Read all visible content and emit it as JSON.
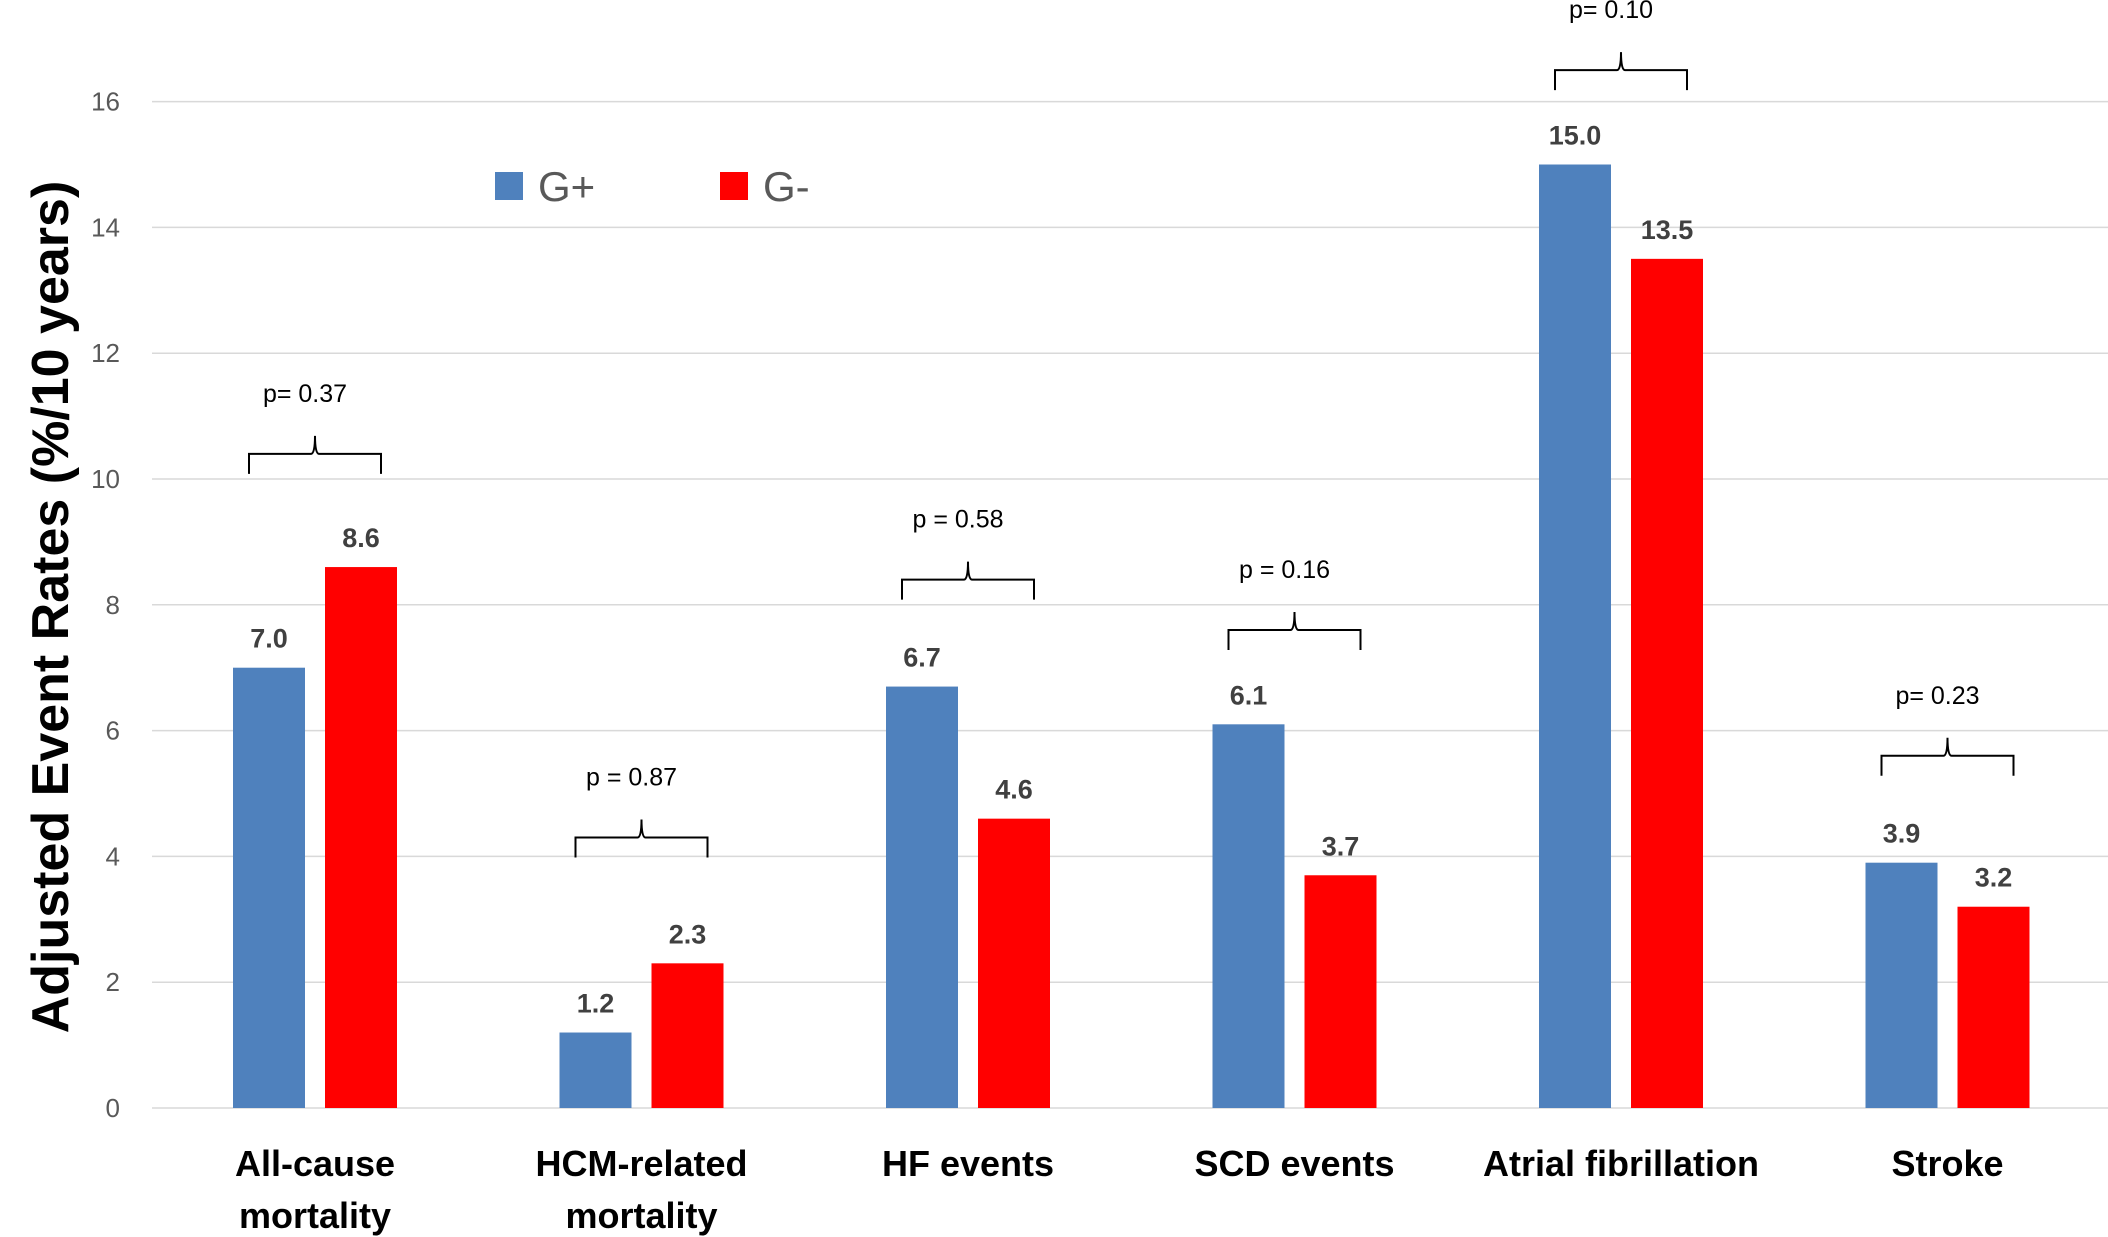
{
  "chart_data": {
    "type": "bar",
    "ylabel": "Adjusted Event Rates  (%/10 years)",
    "ylim": [
      0,
      16
    ],
    "yticks": [
      0,
      2,
      4,
      6,
      8,
      10,
      12,
      14,
      16
    ],
    "grid": true,
    "legend_position": "top-left",
    "categories": [
      [
        "All-cause",
        "mortality"
      ],
      [
        "HCM-related",
        "mortality"
      ],
      [
        "HF events"
      ],
      [
        "SCD events"
      ],
      [
        "Atrial fibrillation"
      ],
      [
        "Stroke"
      ]
    ],
    "series": [
      {
        "name": "G+",
        "color": "#4f81bd",
        "values": [
          7.0,
          1.2,
          6.7,
          6.1,
          15.0,
          3.9
        ],
        "labels": [
          "7.0",
          "1.2",
          "6.7",
          "6.1",
          "15.0",
          "3.9"
        ]
      },
      {
        "name": "G-",
        "color": "#ff0000",
        "values": [
          8.6,
          2.3,
          4.6,
          3.7,
          13.5,
          3.2
        ],
        "labels": [
          "8.6",
          "2.3",
          "4.6",
          "3.7",
          "13.5",
          "3.2"
        ]
      }
    ],
    "annotations": [
      {
        "category": 0,
        "text": "p= 0.37",
        "bracket_y": 10.4
      },
      {
        "category": 1,
        "text": "p = 0.87",
        "bracket_y": 4.3
      },
      {
        "category": 2,
        "text": "p = 0.58",
        "bracket_y": 8.4
      },
      {
        "category": 3,
        "text": "p = 0.16",
        "bracket_y": 7.6
      },
      {
        "category": 4,
        "text": "p= 0.10",
        "bracket_y": 16.5
      },
      {
        "category": 5,
        "text": "p= 0.23",
        "bracket_y": 5.6
      }
    ]
  }
}
